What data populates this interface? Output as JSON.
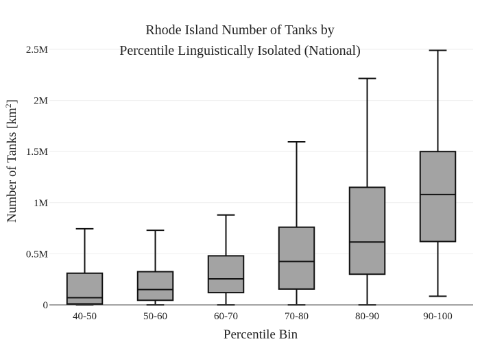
{
  "colors": {
    "box_fill": "#a3a3a3",
    "box_stroke": "#111111",
    "grid": "#eeeeee",
    "axis": "#444444",
    "text": "#222222",
    "background": "#ffffff"
  },
  "chart_data": {
    "type": "box",
    "title_lines": [
      "Rhode Island Number of Tanks by",
      "Percentile Linguistically Isolated (National)"
    ],
    "xlabel": "Percentile Bin",
    "ylabel": "Number of Tanks  [km",
    "ylabel_sup": "2",
    "ylabel_suffix": "]",
    "ylim": [
      0,
      2500000
    ],
    "yticks": [
      {
        "value": 0,
        "label": "0"
      },
      {
        "value": 500000,
        "label": "0.5M"
      },
      {
        "value": 1000000,
        "label": "1M"
      },
      {
        "value": 1500000,
        "label": "1.5M"
      },
      {
        "value": 2000000,
        "label": "2M"
      },
      {
        "value": 2500000,
        "label": "2.5M"
      }
    ],
    "grid": true,
    "legend": "none",
    "categories": [
      "40-50",
      "50-60",
      "60-70",
      "70-80",
      "80-90",
      "90-100"
    ],
    "boxes": [
      {
        "category": "40-50",
        "min": 0,
        "q1": 10000,
        "median": 70000,
        "q3": 310000,
        "max": 745000
      },
      {
        "category": "50-60",
        "min": 0,
        "q1": 45000,
        "median": 150000,
        "q3": 325000,
        "max": 730000
      },
      {
        "category": "60-70",
        "min": 0,
        "q1": 120000,
        "median": 255000,
        "q3": 480000,
        "max": 880000
      },
      {
        "category": "70-80",
        "min": 0,
        "q1": 155000,
        "median": 425000,
        "q3": 760000,
        "max": 1595000
      },
      {
        "category": "80-90",
        "min": 0,
        "q1": 300000,
        "median": 615000,
        "q3": 1150000,
        "max": 2215000
      },
      {
        "category": "90-100",
        "min": 85000,
        "q1": 620000,
        "median": 1080000,
        "q3": 1500000,
        "max": 2490000
      }
    ]
  }
}
